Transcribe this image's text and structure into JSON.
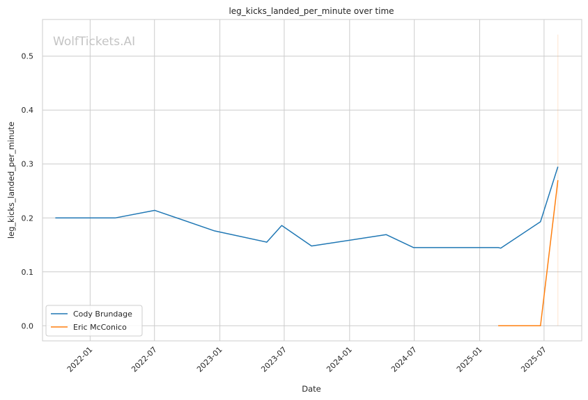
{
  "chart_data": {
    "type": "line",
    "title": "leg_kicks_landed_per_minute over time",
    "xlabel": "Date",
    "ylabel": "leg_kicks_landed_per_minute",
    "watermark": "WolfTickets.AI",
    "x_ticks": [
      "2022-01",
      "2022-07",
      "2023-01",
      "2023-07",
      "2024-01",
      "2024-07",
      "2025-01",
      "2025-07"
    ],
    "y_ticks": [
      "0.0",
      "0.1",
      "0.2",
      "0.3",
      "0.4",
      "0.5"
    ],
    "xlim": [
      "2021-08-20",
      "2025-10-15"
    ],
    "ylim": [
      -0.028,
      0.568
    ],
    "grid": true,
    "legend_position": "lower-left",
    "series": [
      {
        "name": "Cody Brundage",
        "color": "#1f77b4",
        "points": [
          {
            "x": "2021-09-25",
            "y": 0.2
          },
          {
            "x": "2022-03-12",
            "y": 0.2
          },
          {
            "x": "2022-07-02",
            "y": 0.214
          },
          {
            "x": "2022-12-17",
            "y": 0.176
          },
          {
            "x": "2023-05-13",
            "y": 0.155
          },
          {
            "x": "2023-06-24",
            "y": 0.186
          },
          {
            "x": "2023-09-16",
            "y": 0.148
          },
          {
            "x": "2024-04-13",
            "y": 0.169
          },
          {
            "x": "2024-06-29",
            "y": 0.145
          },
          {
            "x": "2025-02-22",
            "y": 0.145
          },
          {
            "x": "2025-03-01",
            "y": 0.144
          },
          {
            "x": "2025-06-21",
            "y": 0.193
          },
          {
            "x": "2025-08-09",
            "y": 0.295
          }
        ]
      },
      {
        "name": "Eric McConico",
        "color": "#ff7f0e",
        "points": [
          {
            "x": "2025-02-22",
            "y": 0.0
          },
          {
            "x": "2025-06-21",
            "y": 0.0
          },
          {
            "x": "2025-08-09",
            "y": 0.27
          }
        ]
      }
    ],
    "vertical_marker": {
      "x": "2025-08-09",
      "y_from": 0.0,
      "y_to": 0.54,
      "color": "#ff7f0e"
    }
  }
}
